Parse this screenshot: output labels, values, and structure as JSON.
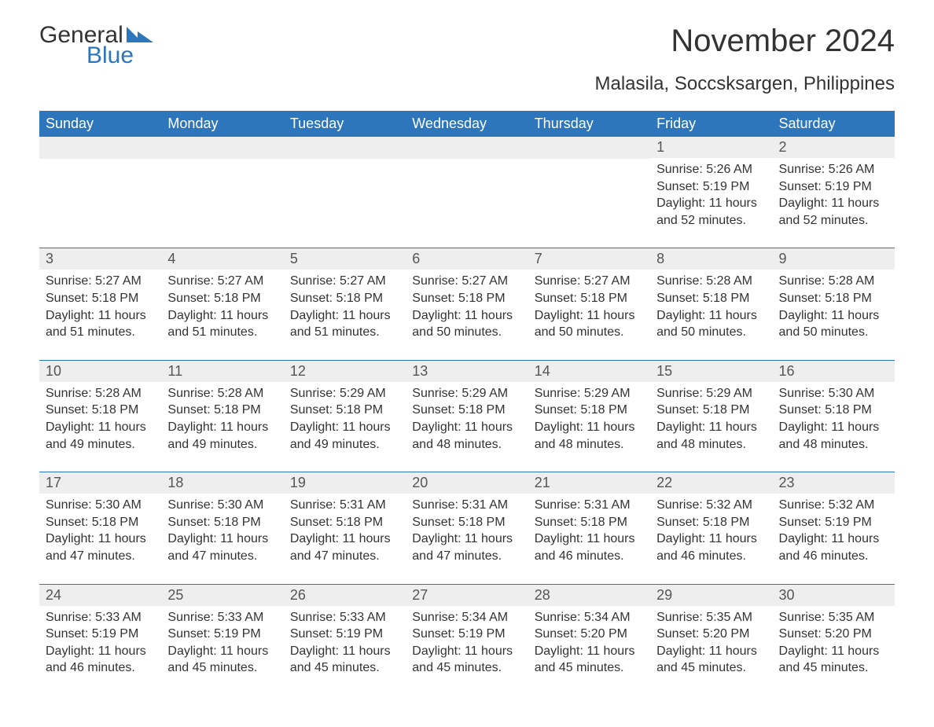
{
  "logo": {
    "text_general": "General",
    "text_blue": "Blue",
    "flag_color": "#2d76bb"
  },
  "title": "November 2024",
  "location": "Malasila, Soccsksargen, Philippines",
  "header_bg": "#2d76bb",
  "header_fg": "#ffffff",
  "daynum_bg": "#eeeeee",
  "text_color": "#333333",
  "row_border_color": "#2d76bb",
  "background_color": "#ffffff",
  "title_fontsize": 40,
  "location_fontsize": 24,
  "header_fontsize": 18,
  "body_fontsize": 16,
  "days_of_week": [
    "Sunday",
    "Monday",
    "Tuesday",
    "Wednesday",
    "Thursday",
    "Friday",
    "Saturday"
  ],
  "weeks": [
    [
      null,
      null,
      null,
      null,
      null,
      {
        "day": "1",
        "sunrise": "Sunrise: 5:26 AM",
        "sunset": "Sunset: 5:19 PM",
        "daylight1": "Daylight: 11 hours",
        "daylight2": "and 52 minutes."
      },
      {
        "day": "2",
        "sunrise": "Sunrise: 5:26 AM",
        "sunset": "Sunset: 5:19 PM",
        "daylight1": "Daylight: 11 hours",
        "daylight2": "and 52 minutes."
      }
    ],
    [
      {
        "day": "3",
        "sunrise": "Sunrise: 5:27 AM",
        "sunset": "Sunset: 5:18 PM",
        "daylight1": "Daylight: 11 hours",
        "daylight2": "and 51 minutes."
      },
      {
        "day": "4",
        "sunrise": "Sunrise: 5:27 AM",
        "sunset": "Sunset: 5:18 PM",
        "daylight1": "Daylight: 11 hours",
        "daylight2": "and 51 minutes."
      },
      {
        "day": "5",
        "sunrise": "Sunrise: 5:27 AM",
        "sunset": "Sunset: 5:18 PM",
        "daylight1": "Daylight: 11 hours",
        "daylight2": "and 51 minutes."
      },
      {
        "day": "6",
        "sunrise": "Sunrise: 5:27 AM",
        "sunset": "Sunset: 5:18 PM",
        "daylight1": "Daylight: 11 hours",
        "daylight2": "and 50 minutes."
      },
      {
        "day": "7",
        "sunrise": "Sunrise: 5:27 AM",
        "sunset": "Sunset: 5:18 PM",
        "daylight1": "Daylight: 11 hours",
        "daylight2": "and 50 minutes."
      },
      {
        "day": "8",
        "sunrise": "Sunrise: 5:28 AM",
        "sunset": "Sunset: 5:18 PM",
        "daylight1": "Daylight: 11 hours",
        "daylight2": "and 50 minutes."
      },
      {
        "day": "9",
        "sunrise": "Sunrise: 5:28 AM",
        "sunset": "Sunset: 5:18 PM",
        "daylight1": "Daylight: 11 hours",
        "daylight2": "and 50 minutes."
      }
    ],
    [
      {
        "day": "10",
        "sunrise": "Sunrise: 5:28 AM",
        "sunset": "Sunset: 5:18 PM",
        "daylight1": "Daylight: 11 hours",
        "daylight2": "and 49 minutes."
      },
      {
        "day": "11",
        "sunrise": "Sunrise: 5:28 AM",
        "sunset": "Sunset: 5:18 PM",
        "daylight1": "Daylight: 11 hours",
        "daylight2": "and 49 minutes."
      },
      {
        "day": "12",
        "sunrise": "Sunrise: 5:29 AM",
        "sunset": "Sunset: 5:18 PM",
        "daylight1": "Daylight: 11 hours",
        "daylight2": "and 49 minutes."
      },
      {
        "day": "13",
        "sunrise": "Sunrise: 5:29 AM",
        "sunset": "Sunset: 5:18 PM",
        "daylight1": "Daylight: 11 hours",
        "daylight2": "and 48 minutes."
      },
      {
        "day": "14",
        "sunrise": "Sunrise: 5:29 AM",
        "sunset": "Sunset: 5:18 PM",
        "daylight1": "Daylight: 11 hours",
        "daylight2": "and 48 minutes."
      },
      {
        "day": "15",
        "sunrise": "Sunrise: 5:29 AM",
        "sunset": "Sunset: 5:18 PM",
        "daylight1": "Daylight: 11 hours",
        "daylight2": "and 48 minutes."
      },
      {
        "day": "16",
        "sunrise": "Sunrise: 5:30 AM",
        "sunset": "Sunset: 5:18 PM",
        "daylight1": "Daylight: 11 hours",
        "daylight2": "and 48 minutes."
      }
    ],
    [
      {
        "day": "17",
        "sunrise": "Sunrise: 5:30 AM",
        "sunset": "Sunset: 5:18 PM",
        "daylight1": "Daylight: 11 hours",
        "daylight2": "and 47 minutes."
      },
      {
        "day": "18",
        "sunrise": "Sunrise: 5:30 AM",
        "sunset": "Sunset: 5:18 PM",
        "daylight1": "Daylight: 11 hours",
        "daylight2": "and 47 minutes."
      },
      {
        "day": "19",
        "sunrise": "Sunrise: 5:31 AM",
        "sunset": "Sunset: 5:18 PM",
        "daylight1": "Daylight: 11 hours",
        "daylight2": "and 47 minutes."
      },
      {
        "day": "20",
        "sunrise": "Sunrise: 5:31 AM",
        "sunset": "Sunset: 5:18 PM",
        "daylight1": "Daylight: 11 hours",
        "daylight2": "and 47 minutes."
      },
      {
        "day": "21",
        "sunrise": "Sunrise: 5:31 AM",
        "sunset": "Sunset: 5:18 PM",
        "daylight1": "Daylight: 11 hours",
        "daylight2": "and 46 minutes."
      },
      {
        "day": "22",
        "sunrise": "Sunrise: 5:32 AM",
        "sunset": "Sunset: 5:18 PM",
        "daylight1": "Daylight: 11 hours",
        "daylight2": "and 46 minutes."
      },
      {
        "day": "23",
        "sunrise": "Sunrise: 5:32 AM",
        "sunset": "Sunset: 5:19 PM",
        "daylight1": "Daylight: 11 hours",
        "daylight2": "and 46 minutes."
      }
    ],
    [
      {
        "day": "24",
        "sunrise": "Sunrise: 5:33 AM",
        "sunset": "Sunset: 5:19 PM",
        "daylight1": "Daylight: 11 hours",
        "daylight2": "and 46 minutes."
      },
      {
        "day": "25",
        "sunrise": "Sunrise: 5:33 AM",
        "sunset": "Sunset: 5:19 PM",
        "daylight1": "Daylight: 11 hours",
        "daylight2": "and 45 minutes."
      },
      {
        "day": "26",
        "sunrise": "Sunrise: 5:33 AM",
        "sunset": "Sunset: 5:19 PM",
        "daylight1": "Daylight: 11 hours",
        "daylight2": "and 45 minutes."
      },
      {
        "day": "27",
        "sunrise": "Sunrise: 5:34 AM",
        "sunset": "Sunset: 5:19 PM",
        "daylight1": "Daylight: 11 hours",
        "daylight2": "and 45 minutes."
      },
      {
        "day": "28",
        "sunrise": "Sunrise: 5:34 AM",
        "sunset": "Sunset: 5:20 PM",
        "daylight1": "Daylight: 11 hours",
        "daylight2": "and 45 minutes."
      },
      {
        "day": "29",
        "sunrise": "Sunrise: 5:35 AM",
        "sunset": "Sunset: 5:20 PM",
        "daylight1": "Daylight: 11 hours",
        "daylight2": "and 45 minutes."
      },
      {
        "day": "30",
        "sunrise": "Sunrise: 5:35 AM",
        "sunset": "Sunset: 5:20 PM",
        "daylight1": "Daylight: 11 hours",
        "daylight2": "and 45 minutes."
      }
    ]
  ]
}
